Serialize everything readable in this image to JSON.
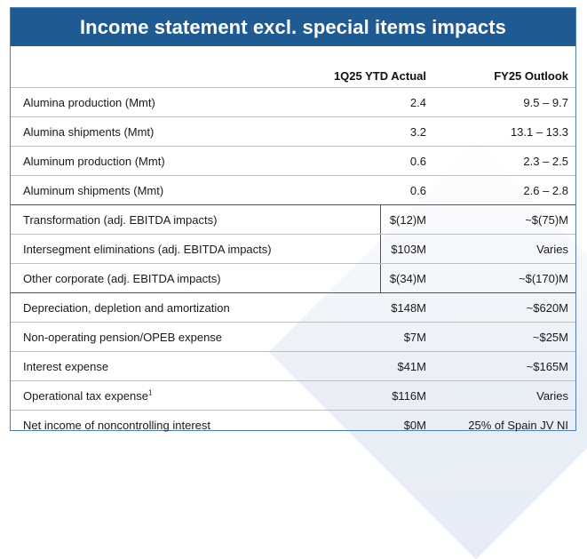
{
  "title": "Income statement excl. special items impacts",
  "columns": {
    "actual": "1Q25 YTD Actual",
    "outlook": "FY25 Outlook"
  },
  "rows": [
    {
      "label": "Alumina production (Mmt)",
      "sup": "",
      "actual": "2.4",
      "outlook": "9.5 – 9.7"
    },
    {
      "label": "Alumina shipments (Mmt)",
      "sup": "",
      "actual": "3.2",
      "outlook": "13.1 – 13.3"
    },
    {
      "label": "Aluminum production (Mmt)",
      "sup": "",
      "actual": "0.6",
      "outlook": "2.3 – 2.5"
    },
    {
      "label": "Aluminum shipments (Mmt)",
      "sup": "",
      "actual": "0.6",
      "outlook": "2.6 – 2.8"
    },
    {
      "label": "Transformation (adj. EBITDA impacts)",
      "sup": "",
      "actual": "$(12)M",
      "outlook": "~$(75)M"
    },
    {
      "label": "Intersegment eliminations (adj. EBITDA impacts)",
      "sup": "",
      "actual": "$103M",
      "outlook": "Varies"
    },
    {
      "label": "Other corporate (adj. EBITDA impacts)",
      "sup": "",
      "actual": "$(34)M",
      "outlook": "~$(170)M"
    },
    {
      "label": "Depreciation, depletion and amortization",
      "sup": "",
      "actual": "$148M",
      "outlook": "~$620M"
    },
    {
      "label": "Non-operating pension/OPEB expense",
      "sup": "",
      "actual": "$7M",
      "outlook": "~$25M"
    },
    {
      "label": "Interest expense",
      "sup": "",
      "actual": "$41M",
      "outlook": "~$165M"
    },
    {
      "label": "Operational tax expense",
      "sup": "1",
      "actual": "$116M",
      "outlook": "Varies"
    },
    {
      "label": "Net income of noncontrolling interest",
      "sup": "",
      "actual": "$0M",
      "outlook": "25% of Spain JV NI"
    }
  ]
}
